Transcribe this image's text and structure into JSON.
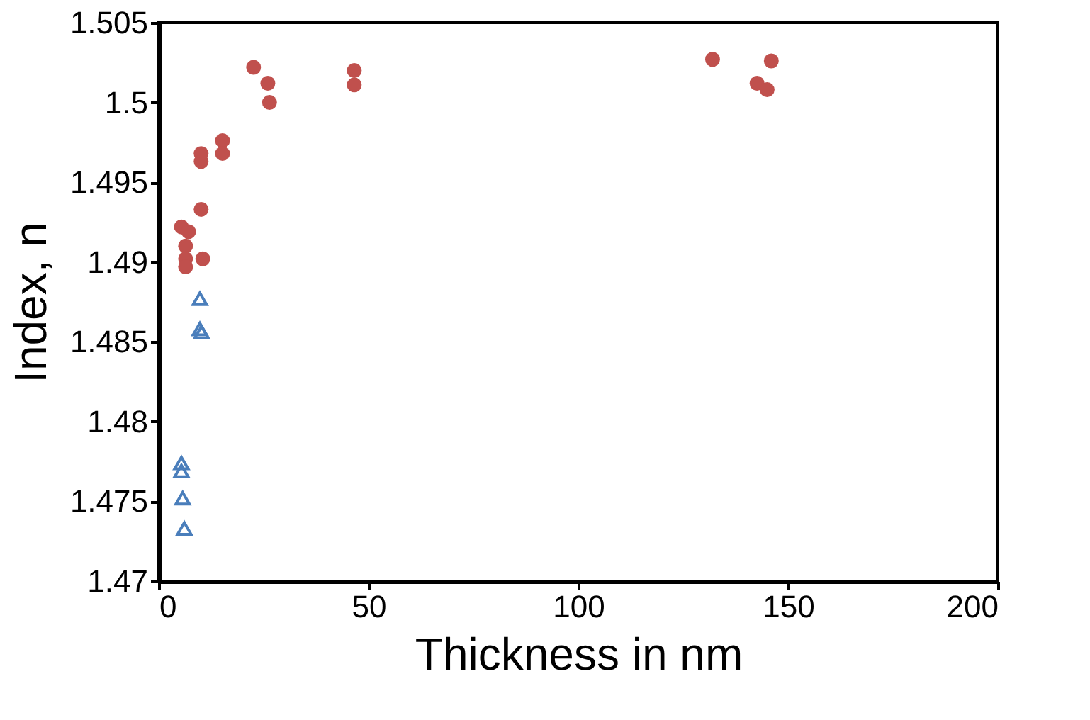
{
  "chart_data": {
    "type": "scatter",
    "xlabel": "Thickness in nm",
    "ylabel": "Index, n",
    "xlim": [
      0,
      200
    ],
    "xticks": [
      0,
      50,
      100,
      150,
      200
    ],
    "ylim": [
      1.47,
      1.505
    ],
    "yticks": [
      1.47,
      1.475,
      1.48,
      1.485,
      1.49,
      1.495,
      1.5,
      1.505
    ],
    "series": [
      {
        "color": "#4a7ebb",
        "marker": "triangle",
        "x": [
          9.8,
          9.8,
          10.2,
          5.4,
          5.4,
          5.7,
          6.1
        ],
        "values": [
          1.4877,
          1.4858,
          1.4856,
          1.4774,
          1.4769,
          1.4752,
          1.4733
        ]
      },
      {
        "color": "#c0504d",
        "marker": "circle",
        "x": [
          5.4,
          7.1,
          6.4,
          6.4,
          6.4,
          10.5,
          10.1,
          10.1,
          10.1,
          15.2,
          15.2,
          22.6,
          26,
          26.4,
          46.6,
          46.6,
          132,
          146,
          142.6,
          145
        ],
        "values": [
          1.4922,
          1.4919,
          1.491,
          1.4902,
          1.4897,
          1.4902,
          1.4933,
          1.4968,
          1.4963,
          1.4976,
          1.4968,
          1.5022,
          1.5012,
          1.5,
          1.502,
          1.5011,
          1.5027,
          1.5026,
          1.5012,
          1.5008
        ]
      }
    ]
  }
}
